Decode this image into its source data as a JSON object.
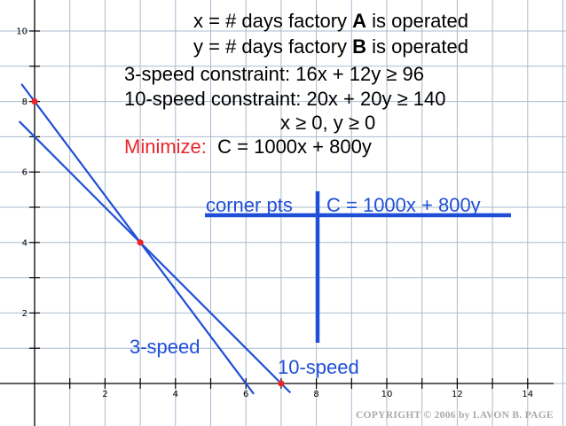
{
  "text": {
    "def_x_prefix": "x = # days factory ",
    "def_x_bold": "A",
    "def_x_suffix": " is operated",
    "def_y_prefix": "y = # days factory ",
    "def_y_bold": "B",
    "def_y_suffix": " is operated",
    "constraint_3speed": "3-speed constraint: 16x + 12y ≥ 96",
    "constraint_10speed": "10-speed constraint: 20x + 20y ≥ 140",
    "nonneg": "x ≥ 0, y ≥ 0",
    "minimize_label": "Minimize:",
    "objective": "C = 1000x + 800y",
    "table_col1": "corner pts",
    "table_col2": "C = 1000x + 800y",
    "copyright": "COPYRIGHT © 2006 by LAVON B. PAGE"
  },
  "colors": {
    "grid": "#a9bbce",
    "line": "#1f4fd6",
    "point": "#e8262b",
    "axis": "#000000"
  },
  "chart_data": {
    "type": "line",
    "grid": true,
    "xlim": [
      -1,
      15
    ],
    "ylim": [
      -0.8,
      10.5
    ],
    "x_ticks": [
      2,
      4,
      6,
      8,
      10,
      12,
      14
    ],
    "y_ticks": [
      2,
      4,
      6,
      8,
      10
    ],
    "series": [
      {
        "name": "3-speed",
        "points": [
          [
            0,
            8
          ],
          [
            6,
            0
          ]
        ]
      },
      {
        "name": "10-speed",
        "points": [
          [
            0,
            7
          ],
          [
            7,
            0
          ]
        ]
      }
    ],
    "corner_points": [
      [
        0,
        8
      ],
      [
        3,
        4
      ],
      [
        7,
        0
      ]
    ]
  }
}
